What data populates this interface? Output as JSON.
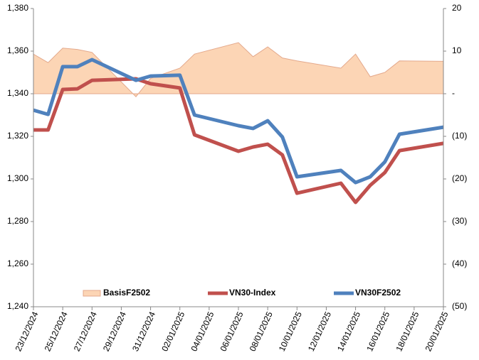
{
  "chart_data": {
    "type": "combo",
    "x": [
      "23/12/2024",
      "24/12/2024",
      "25/12/2024",
      "26/12/2024",
      "27/12/2024",
      "30/12/2024",
      "31/12/2024",
      "02/01/2025",
      "03/01/2025",
      "06/01/2025",
      "07/01/2025",
      "08/01/2025",
      "09/01/2025",
      "10/01/2025",
      "13/01/2025",
      "14/01/2025",
      "15/01/2025",
      "16/01/2025",
      "17/01/2025",
      "20/01/2025"
    ],
    "xlim": [
      "23/12/2024",
      "20/01/2025"
    ],
    "xticks": [
      "23/12/2024",
      "25/12/2024",
      "27/12/2024",
      "29/12/2024",
      "31/12/2024",
      "02/01/2025",
      "04/01/2025",
      "06/01/2025",
      "08/01/2025",
      "10/01/2025",
      "12/01/2025",
      "14/01/2025",
      "16/01/2025",
      "18/01/2025",
      "20/01/2025"
    ],
    "ylim": [
      1240,
      1380
    ],
    "yticks": [
      {
        "value": 1240,
        "label": "1,240"
      },
      {
        "value": 1260,
        "label": "1,260"
      },
      {
        "value": 1280,
        "label": "1,280"
      },
      {
        "value": 1300,
        "label": "1,300"
      },
      {
        "value": 1320,
        "label": "1,320"
      },
      {
        "value": 1340,
        "label": "1,340"
      },
      {
        "value": 1360,
        "label": "1,360"
      },
      {
        "value": 1380,
        "label": "1,380"
      }
    ],
    "y2lim": [
      -50,
      20
    ],
    "y2ticks": [
      {
        "value": -50,
        "label": "(50)"
      },
      {
        "value": -40,
        "label": "(40)"
      },
      {
        "value": -30,
        "label": "(30)"
      },
      {
        "value": -20,
        "label": "(20)"
      },
      {
        "value": -10,
        "label": "(10)"
      },
      {
        "value": 0,
        "label": "-"
      },
      10,
      20
    ],
    "series": [
      {
        "name": "BasisF2502",
        "type": "area",
        "axis": "y2",
        "color": "#fcd5b5",
        "edge": "#e4a98c",
        "values": [
          9.3,
          7.3,
          10.7,
          10.4,
          9.7,
          -0.7,
          3.6,
          6.0,
          9.3,
          12.0,
          8.7,
          11.0,
          8.4,
          7.7,
          6.0,
          9.3,
          4.0,
          5.0,
          7.7,
          7.6
        ]
      },
      {
        "name": "VN30-Index",
        "type": "line",
        "color": "#c0504d",
        "values": [
          1323,
          1323,
          1342,
          1342.3,
          1346.3,
          1347,
          1344.7,
          1342.7,
          1320.7,
          1313,
          1315,
          1316.3,
          1311.3,
          1293.3,
          1298,
          1289,
          1297,
          1303,
          1313.3,
          1316.7
        ]
      },
      {
        "name": "VN30F2502",
        "type": "line",
        "color": "#4f81bd",
        "values": [
          1332.3,
          1330.3,
          1352.7,
          1352.7,
          1356,
          1346.3,
          1348.3,
          1348.7,
          1330,
          1325,
          1323.7,
          1327.3,
          1319.7,
          1301,
          1304,
          1298.3,
          1301,
          1308,
          1321,
          1324.3
        ]
      }
    ]
  }
}
